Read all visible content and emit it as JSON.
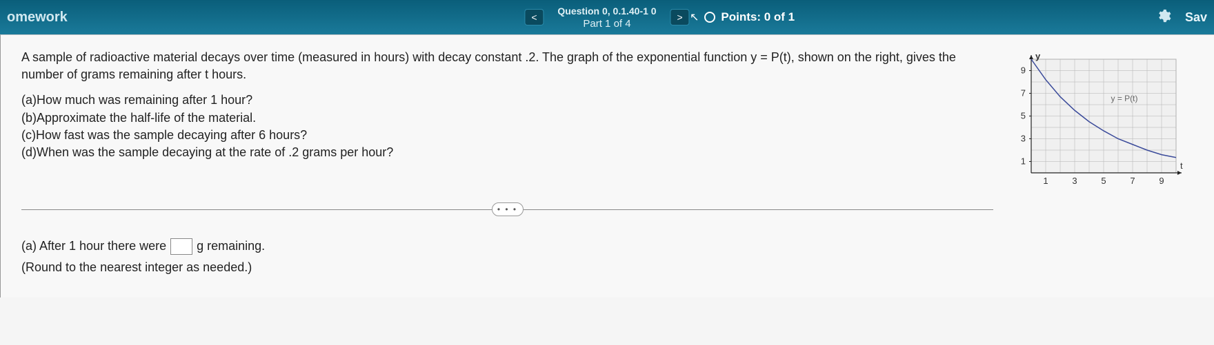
{
  "header": {
    "homework_label": "omework",
    "question_line": "Question 0, 0.1.40-1 0",
    "part_line": "Part 1 of 4",
    "prev_label": "<",
    "next_label": ">",
    "points_label": "Points: 0 of 1",
    "save_label": "Sav"
  },
  "question": {
    "intro": "A sample of radioactive material decays over time (measured in hours) with decay constant .2. The graph of the exponential function y = P(t), shown on the right, gives the number of grams remaining after t hours.",
    "part_a": "(a)How much was remaining after 1 hour?",
    "part_b": "(b)Approximate the half-life of the material.",
    "part_c": "(c)How fast was the sample decaying after 6 hours?",
    "part_d": "(d)When was the sample decaying at the rate of .2 grams per hour?"
  },
  "answer": {
    "prefix": "(a) After 1 hour there were",
    "suffix": "g remaining.",
    "hint": "(Round to the nearest integer as needed.)",
    "value": ""
  },
  "graph": {
    "y_axis_label": "y",
    "x_axis_label": "t",
    "curve_label": "y = P(t)",
    "x_ticks": [
      "1",
      "3",
      "5",
      "7",
      "9"
    ],
    "y_ticks": [
      "1",
      "3",
      "5",
      "7",
      "9"
    ],
    "xlim": [
      0,
      10
    ],
    "ylim": [
      0,
      10
    ],
    "curve_points": [
      [
        0,
        10
      ],
      [
        1,
        8.2
      ],
      [
        2,
        6.7
      ],
      [
        3,
        5.5
      ],
      [
        4,
        4.5
      ],
      [
        5,
        3.7
      ],
      [
        6,
        3.0
      ],
      [
        7,
        2.5
      ],
      [
        8,
        2.0
      ],
      [
        9,
        1.6
      ],
      [
        10,
        1.35
      ]
    ],
    "grid_color": "#b0b0b0",
    "curve_color": "#3a4a9a",
    "background_color": "#f0f0f0",
    "axis_color": "#222222",
    "line_width": 1.5,
    "label_fontsize": 13
  },
  "dots": "• • •"
}
